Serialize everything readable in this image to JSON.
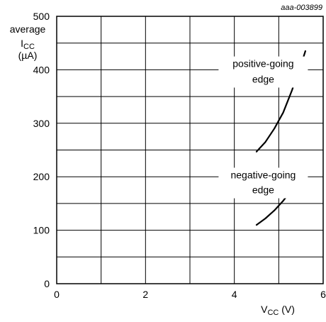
{
  "chart_data": {
    "type": "line",
    "figure_id": "aaa-003899",
    "ylabel": {
      "line1": "average",
      "quantity": "I",
      "subscript": "CC",
      "unit": "(µA)"
    },
    "xlabel": {
      "quantity": "V",
      "subscript": "CC",
      "unit": " (V)"
    },
    "xlim": [
      0,
      6
    ],
    "ylim": [
      0,
      500
    ],
    "x_ticks": [
      {
        "value": 0,
        "label": "0"
      },
      {
        "value": 2,
        "label": "2"
      },
      {
        "value": 4,
        "label": "4"
      },
      {
        "value": 6,
        "label": "6"
      }
    ],
    "y_ticks": [
      {
        "value": 0,
        "label": "0"
      },
      {
        "value": 100,
        "label": "100"
      },
      {
        "value": 200,
        "label": "200"
      },
      {
        "value": 300,
        "label": "300"
      },
      {
        "value": 400,
        "label": "400"
      },
      {
        "value": 500,
        "label": "500"
      }
    ],
    "grid": true,
    "x_grid_step": 1,
    "y_grid_step": 50,
    "series": [
      {
        "name": "positive-going edge",
        "label_lines": [
          "positive-going",
          "edge"
        ],
        "x": [
          4.5,
          4.7,
          4.9,
          5.1,
          5.3,
          5.45,
          5.55,
          5.6
        ],
        "y": [
          247,
          265,
          290,
          320,
          362,
          400,
          422,
          435
        ]
      },
      {
        "name": "negative-going edge",
        "label_lines": [
          "negative-going",
          "edge"
        ],
        "x": [
          4.5,
          4.7,
          4.9,
          5.1,
          5.3,
          5.45,
          5.55
        ],
        "y": [
          110,
          122,
          137,
          155,
          176,
          195,
          208
        ]
      }
    ]
  }
}
